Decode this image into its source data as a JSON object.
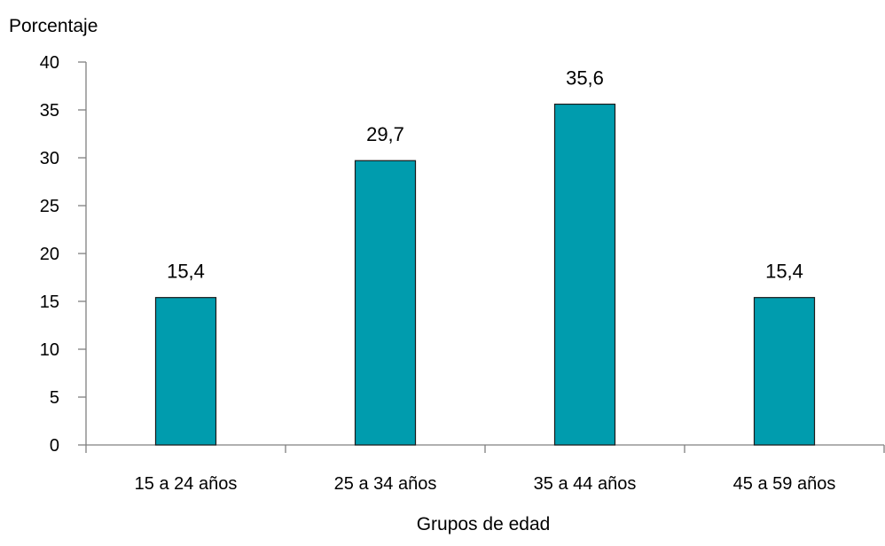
{
  "chart_data": {
    "type": "bar",
    "title": "",
    "ylabel": "Porcentaje",
    "xlabel": "Grupos de edad",
    "categories": [
      "15 a 24 años",
      "25 a 34 años",
      "35 a 44 años",
      "45 a 59 años"
    ],
    "values": [
      15.4,
      29.7,
      35.6,
      15.4
    ],
    "value_labels": [
      "15,4",
      "29,7",
      "35,6",
      "15,4"
    ],
    "ylim": [
      0,
      40
    ],
    "yticks": [
      0,
      5,
      10,
      15,
      20,
      25,
      30,
      35,
      40
    ],
    "grid": false,
    "legend": "none",
    "bar_color": "#009CAE",
    "bar_edge_color": "#1a1a1a"
  }
}
